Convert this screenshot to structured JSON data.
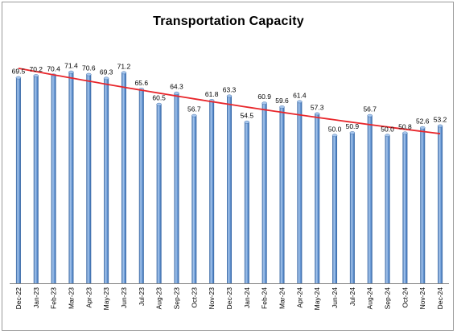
{
  "chart_data": {
    "type": "bar",
    "title": "Transportation Capacity",
    "xlabel": "",
    "ylabel": "",
    "ylim": [
      0,
      80
    ],
    "grid": false,
    "legend": "none",
    "categories": [
      "Dec-22",
      "Jan-23",
      "Feb-23",
      "Mar-23",
      "Apr-23",
      "May-23",
      "Jun-23",
      "Jul-23",
      "Aug-23",
      "Sep-23",
      "Oct-23",
      "Nov-23",
      "Dec-23",
      "Jan-24",
      "Feb-24",
      "Mar-24",
      "Apr-24",
      "May-24",
      "Jun-24",
      "Jul-24",
      "Aug-24",
      "Sep-24",
      "Oct-24",
      "Nov-24",
      "Dec-24"
    ],
    "values": [
      69.5,
      70.2,
      70.4,
      71.4,
      70.6,
      69.3,
      71.2,
      65.6,
      60.5,
      64.3,
      56.7,
      61.8,
      63.3,
      54.5,
      60.9,
      59.6,
      61.4,
      57.3,
      50.0,
      50.9,
      56.7,
      50.0,
      50.8,
      52.6,
      53.2
    ],
    "value_labels": [
      "69.5",
      "70.2",
      "70.4",
      "71.4",
      "70.6",
      "69.3",
      "71.2",
      "65.6",
      "60.5",
      "64.3",
      "56.7",
      "61.8",
      "63.3",
      "54.5",
      "60.9",
      "59.6",
      "61.4",
      "57.3",
      "50.0",
      "50.9",
      "56.7",
      "50.0",
      "50.8",
      "52.6",
      "53.2"
    ],
    "trendline": {
      "type": "polynomial",
      "color": "#e8262b"
    },
    "colors": {
      "bar": "#4f86c6",
      "bar_light": "#a9c8ee",
      "bar_dark": "#2f5f9e",
      "trend": "#e8262b",
      "axis": "#808080"
    }
  }
}
